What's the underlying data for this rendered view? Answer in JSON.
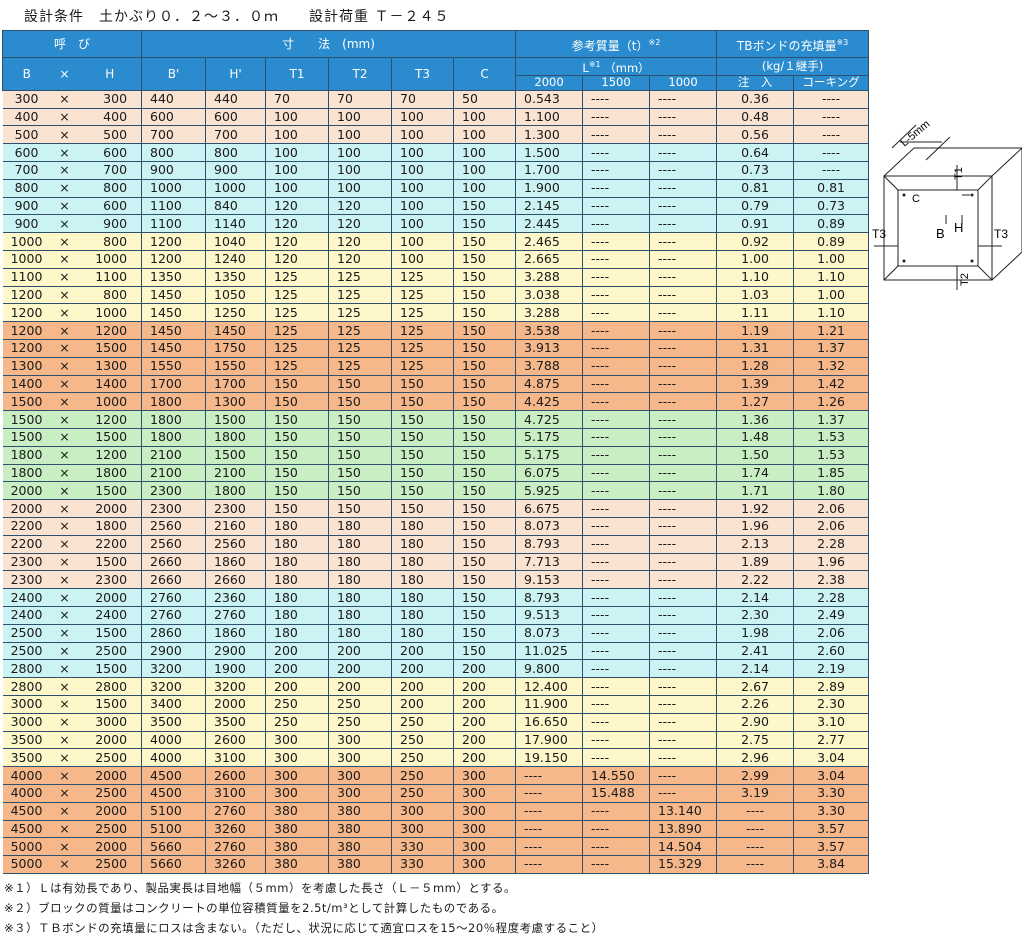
{
  "title": "設計条件　土かぶり０．２～３．０ｍ　　設計荷重 Ｔ－２４５",
  "header": {
    "yobi": "呼　び",
    "B": "B",
    "x": "×",
    "H": "H",
    "sunpo": "寸　　法　(mm)",
    "Bp": "B'",
    "Hp": "H'",
    "T1": "T1",
    "T2": "T2",
    "T3": "T3",
    "C": "C",
    "mass": "参考質量（t）",
    "mass_note": "※2",
    "L": "L",
    "L_note": "※1",
    "L_unit": "（mm）",
    "L2000": "2000",
    "L1500": "1500",
    "L1000": "1000",
    "bond": "TBボンドの充填量",
    "bond_note": "※3",
    "bond_unit": "(kg/１継手)",
    "inject": "注　入",
    "caulk": "コーキング"
  },
  "groups": [
    {
      "rows": [
        [
          "300",
          "×",
          "300",
          "440",
          "440",
          "70",
          "70",
          "70",
          "50",
          "0.543",
          "----",
          "----",
          "0.36",
          "----"
        ],
        [
          "400",
          "×",
          "400",
          "600",
          "600",
          "100",
          "100",
          "100",
          "100",
          "1.100",
          "----",
          "----",
          "0.48",
          "----"
        ],
        [
          "500",
          "×",
          "500",
          "700",
          "700",
          "100",
          "100",
          "100",
          "100",
          "1.300",
          "----",
          "----",
          "0.56",
          "----"
        ]
      ]
    },
    {
      "rows": [
        [
          "600",
          "×",
          "600",
          "800",
          "800",
          "100",
          "100",
          "100",
          "100",
          "1.500",
          "----",
          "----",
          "0.64",
          "----"
        ],
        [
          "700",
          "×",
          "700",
          "900",
          "900",
          "100",
          "100",
          "100",
          "100",
          "1.700",
          "----",
          "----",
          "0.73",
          "----"
        ],
        [
          "800",
          "×",
          "800",
          "1000",
          "1000",
          "100",
          "100",
          "100",
          "100",
          "1.900",
          "----",
          "----",
          "0.81",
          "0.81"
        ],
        [
          "900",
          "×",
          "600",
          "1100",
          "840",
          "120",
          "120",
          "100",
          "150",
          "2.145",
          "----",
          "----",
          "0.79",
          "0.73"
        ],
        [
          "900",
          "×",
          "900",
          "1100",
          "1140",
          "120",
          "120",
          "100",
          "150",
          "2.445",
          "----",
          "----",
          "0.91",
          "0.89"
        ]
      ]
    },
    {
      "rows": [
        [
          "1000",
          "×",
          "800",
          "1200",
          "1040",
          "120",
          "120",
          "100",
          "150",
          "2.465",
          "----",
          "----",
          "0.92",
          "0.89"
        ],
        [
          "1000",
          "×",
          "1000",
          "1200",
          "1240",
          "120",
          "120",
          "100",
          "150",
          "2.665",
          "----",
          "----",
          "1.00",
          "1.00"
        ],
        [
          "1100",
          "×",
          "1100",
          "1350",
          "1350",
          "125",
          "125",
          "125",
          "150",
          "3.288",
          "----",
          "----",
          "1.10",
          "1.10"
        ],
        [
          "1200",
          "×",
          "800",
          "1450",
          "1050",
          "125",
          "125",
          "125",
          "150",
          "3.038",
          "----",
          "----",
          "1.03",
          "1.00"
        ],
        [
          "1200",
          "×",
          "1000",
          "1450",
          "1250",
          "125",
          "125",
          "125",
          "150",
          "3.288",
          "----",
          "----",
          "1.11",
          "1.10"
        ]
      ]
    },
    {
      "rows": [
        [
          "1200",
          "×",
          "1200",
          "1450",
          "1450",
          "125",
          "125",
          "125",
          "150",
          "3.538",
          "----",
          "----",
          "1.19",
          "1.21"
        ],
        [
          "1200",
          "×",
          "1500",
          "1450",
          "1750",
          "125",
          "125",
          "125",
          "150",
          "3.913",
          "----",
          "----",
          "1.31",
          "1.37"
        ],
        [
          "1300",
          "×",
          "1300",
          "1550",
          "1550",
          "125",
          "125",
          "125",
          "150",
          "3.788",
          "----",
          "----",
          "1.28",
          "1.32"
        ],
        [
          "1400",
          "×",
          "1400",
          "1700",
          "1700",
          "150",
          "150",
          "150",
          "150",
          "4.875",
          "----",
          "----",
          "1.39",
          "1.42"
        ],
        [
          "1500",
          "×",
          "1000",
          "1800",
          "1300",
          "150",
          "150",
          "150",
          "150",
          "4.425",
          "----",
          "----",
          "1.27",
          "1.26"
        ]
      ]
    },
    {
      "rows": [
        [
          "1500",
          "×",
          "1200",
          "1800",
          "1500",
          "150",
          "150",
          "150",
          "150",
          "4.725",
          "----",
          "----",
          "1.36",
          "1.37"
        ],
        [
          "1500",
          "×",
          "1500",
          "1800",
          "1800",
          "150",
          "150",
          "150",
          "150",
          "5.175",
          "----",
          "----",
          "1.48",
          "1.53"
        ],
        [
          "1800",
          "×",
          "1200",
          "2100",
          "1500",
          "150",
          "150",
          "150",
          "150",
          "5.175",
          "----",
          "----",
          "1.50",
          "1.53"
        ],
        [
          "1800",
          "×",
          "1800",
          "2100",
          "2100",
          "150",
          "150",
          "150",
          "150",
          "6.075",
          "----",
          "----",
          "1.74",
          "1.85"
        ],
        [
          "2000",
          "×",
          "1500",
          "2300",
          "1800",
          "150",
          "150",
          "150",
          "150",
          "5.925",
          "----",
          "----",
          "1.71",
          "1.80"
        ]
      ]
    },
    {
      "rows": [
        [
          "2000",
          "×",
          "2000",
          "2300",
          "2300",
          "150",
          "150",
          "150",
          "150",
          "6.675",
          "----",
          "----",
          "1.92",
          "2.06"
        ],
        [
          "2200",
          "×",
          "1800",
          "2560",
          "2160",
          "180",
          "180",
          "180",
          "150",
          "8.073",
          "----",
          "----",
          "1.96",
          "2.06"
        ],
        [
          "2200",
          "×",
          "2200",
          "2560",
          "2560",
          "180",
          "180",
          "180",
          "150",
          "8.793",
          "----",
          "----",
          "2.13",
          "2.28"
        ],
        [
          "2300",
          "×",
          "1500",
          "2660",
          "1860",
          "180",
          "180",
          "180",
          "150",
          "7.713",
          "----",
          "----",
          "1.89",
          "1.96"
        ],
        [
          "2300",
          "×",
          "2300",
          "2660",
          "2660",
          "180",
          "180",
          "180",
          "150",
          "9.153",
          "----",
          "----",
          "2.22",
          "2.38"
        ]
      ]
    },
    {
      "rows": [
        [
          "2400",
          "×",
          "2000",
          "2760",
          "2360",
          "180",
          "180",
          "180",
          "150",
          "8.793",
          "----",
          "----",
          "2.14",
          "2.28"
        ],
        [
          "2400",
          "×",
          "2400",
          "2760",
          "2760",
          "180",
          "180",
          "180",
          "150",
          "9.513",
          "----",
          "----",
          "2.30",
          "2.49"
        ],
        [
          "2500",
          "×",
          "1500",
          "2860",
          "1860",
          "180",
          "180",
          "180",
          "150",
          "8.073",
          "----",
          "----",
          "1.98",
          "2.06"
        ],
        [
          "2500",
          "×",
          "2500",
          "2900",
          "2900",
          "200",
          "200",
          "200",
          "150",
          "11.025",
          "----",
          "----",
          "2.41",
          "2.60"
        ],
        [
          "2800",
          "×",
          "1500",
          "3200",
          "1900",
          "200",
          "200",
          "200",
          "200",
          "9.800",
          "----",
          "----",
          "2.14",
          "2.19"
        ]
      ]
    },
    {
      "rows": [
        [
          "2800",
          "×",
          "2800",
          "3200",
          "3200",
          "200",
          "200",
          "200",
          "200",
          "12.400",
          "----",
          "----",
          "2.67",
          "2.89"
        ],
        [
          "3000",
          "×",
          "1500",
          "3400",
          "2000",
          "250",
          "250",
          "200",
          "200",
          "11.900",
          "----",
          "----",
          "2.26",
          "2.30"
        ],
        [
          "3000",
          "×",
          "3000",
          "3500",
          "3500",
          "250",
          "250",
          "250",
          "200",
          "16.650",
          "----",
          "----",
          "2.90",
          "3.10"
        ],
        [
          "3500",
          "×",
          "2000",
          "4000",
          "2600",
          "300",
          "300",
          "250",
          "200",
          "17.900",
          "----",
          "----",
          "2.75",
          "2.77"
        ],
        [
          "3500",
          "×",
          "2500",
          "4000",
          "3100",
          "300",
          "300",
          "250",
          "200",
          "19.150",
          "----",
          "----",
          "2.96",
          "3.04"
        ]
      ]
    },
    {
      "rows": [
        [
          "4000",
          "×",
          "2000",
          "4500",
          "2600",
          "300",
          "300",
          "250",
          "300",
          "----",
          "14.550",
          "----",
          "2.99",
          "3.04"
        ],
        [
          "4000",
          "×",
          "2500",
          "4500",
          "3100",
          "300",
          "300",
          "250",
          "300",
          "----",
          "15.488",
          "----",
          "3.19",
          "3.30"
        ],
        [
          "4500",
          "×",
          "2000",
          "5100",
          "2760",
          "380",
          "380",
          "300",
          "300",
          "----",
          "----",
          "13.140",
          "----",
          "3.30"
        ],
        [
          "4500",
          "×",
          "2500",
          "5100",
          "3260",
          "380",
          "380",
          "300",
          "300",
          "----",
          "----",
          "13.890",
          "----",
          "3.57"
        ],
        [
          "5000",
          "×",
          "2000",
          "5660",
          "2760",
          "380",
          "380",
          "330",
          "300",
          "----",
          "----",
          "14.504",
          "----",
          "3.57"
        ],
        [
          "5000",
          "×",
          "2500",
          "5660",
          "3260",
          "380",
          "380",
          "330",
          "300",
          "----",
          "----",
          "15.329",
          "----",
          "3.84"
        ]
      ]
    }
  ],
  "notes": [
    "※１）Ｌは有効長であり、製品実長は目地幅（５mm）を考慮した長さ（Ｌ－５mm）とする。",
    "※２）ブロックの質量はコンクリートの単位容積質量を2.5t/m³として計算したものである。",
    "※３）ＴＢボンドの充填量にロスは含まない。（ただし、状況に応じて適宜ロスを15～20％程度考慮すること）"
  ],
  "diagram": {
    "L": "L-5mm",
    "T1": "T1",
    "T2": "T2",
    "T3": "T3",
    "C": "C",
    "B": "B",
    "H": "H"
  }
}
